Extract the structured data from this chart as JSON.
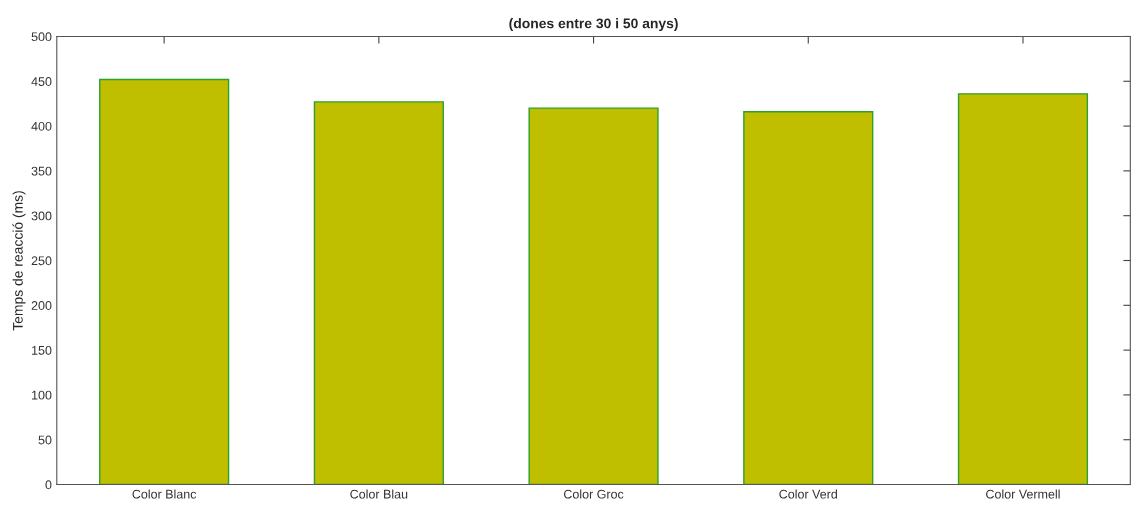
{
  "chart_data": {
    "type": "bar",
    "title": "(dones entre 30 i 50 anys)",
    "ylabel": "Temps de reacció (ms)",
    "categories": [
      "Color Blanc",
      "Color Blau",
      "Color Groc",
      "Color Verd",
      "Color Vermell"
    ],
    "values": [
      452,
      427,
      420,
      416,
      436
    ],
    "color": "#bfbf00",
    "ylim": [
      0,
      500
    ],
    "yticks": [
      0,
      50,
      100,
      150,
      200,
      250,
      300,
      350,
      400,
      450,
      500
    ],
    "grid": false
  }
}
